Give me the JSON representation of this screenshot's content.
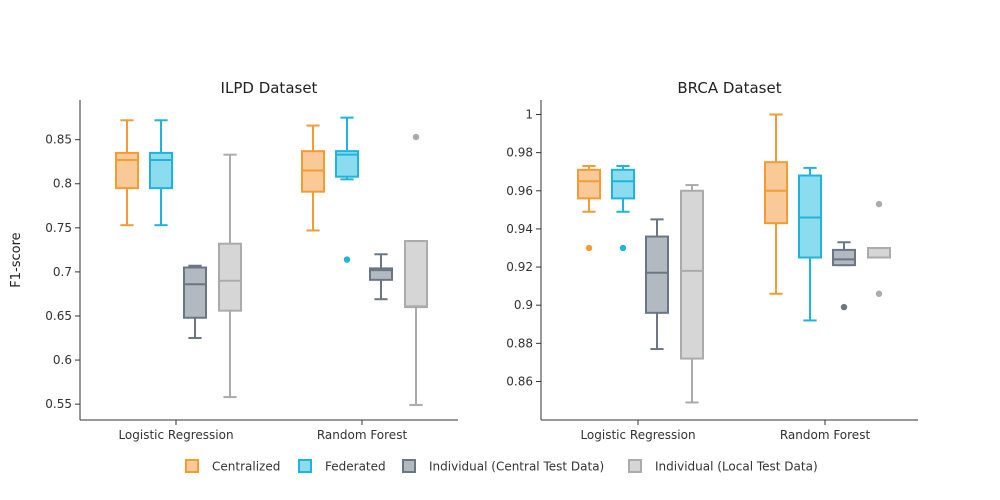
{
  "y_axis_title": "F1-score",
  "legend": [
    {
      "name": "Centralized",
      "stroke": "#F39C36",
      "fill": "#F9C997"
    },
    {
      "name": "Federated",
      "stroke": "#1EB4DC",
      "fill": "#8CDCF0"
    },
    {
      "name": "Individual (Central Test Data)",
      "stroke": "#6B7685",
      "fill": "#B3B9C0"
    },
    {
      "name": "Individual (Local Test Data)",
      "stroke": "#ABABAB",
      "fill": "#D6D6D6"
    }
  ],
  "chart_data": [
    {
      "type": "box",
      "title": "ILPD Dataset",
      "ylabel": "F1-score",
      "categories": [
        "Logistic Regression",
        "Random Forest"
      ],
      "ylim": [
        0.532,
        0.895
      ],
      "yticks": [
        0.55,
        0.6,
        0.65,
        0.7,
        0.75,
        0.8,
        0.85
      ],
      "ytick_labels": [
        "0.55",
        "0.6",
        "0.65",
        "0.7",
        "0.75",
        "0.8",
        "0.85"
      ],
      "series": [
        {
          "name": "Centralized",
          "boxes": [
            {
              "min": 0.753,
              "q1": 0.795,
              "median": 0.827,
              "q3": 0.835,
              "max": 0.872,
              "outliers": []
            },
            {
              "min": 0.747,
              "q1": 0.791,
              "median": 0.815,
              "q3": 0.837,
              "max": 0.866,
              "outliers": []
            }
          ]
        },
        {
          "name": "Federated",
          "boxes": [
            {
              "min": 0.753,
              "q1": 0.795,
              "median": 0.827,
              "q3": 0.835,
              "max": 0.872,
              "outliers": []
            },
            {
              "min": 0.805,
              "q1": 0.808,
              "median": 0.833,
              "q3": 0.837,
              "max": 0.875,
              "outliers": [
                0.714
              ]
            }
          ]
        },
        {
          "name": "Individual (Central Test Data)",
          "boxes": [
            {
              "min": 0.625,
              "q1": 0.648,
              "median": 0.686,
              "q3": 0.705,
              "max": 0.707,
              "outliers": []
            },
            {
              "min": 0.669,
              "q1": 0.691,
              "median": 0.702,
              "q3": 0.704,
              "max": 0.72,
              "outliers": []
            }
          ]
        },
        {
          "name": "Individual (Local Test Data)",
          "boxes": [
            {
              "min": 0.558,
              "q1": 0.656,
              "median": 0.69,
              "q3": 0.732,
              "max": 0.833,
              "outliers": []
            },
            {
              "min": 0.549,
              "q1": 0.66,
              "median": 0.661,
              "q3": 0.735,
              "max": 0.735,
              "outliers": [
                0.853
              ]
            }
          ]
        }
      ]
    },
    {
      "type": "box",
      "title": "BRCA Dataset",
      "categories": [
        "Logistic Regression",
        "Random Forest"
      ],
      "ylim": [
        0.8398,
        1.0076
      ],
      "yticks": [
        0.86,
        0.88,
        0.9,
        0.92,
        0.94,
        0.96,
        0.98,
        1
      ],
      "ytick_labels": [
        "0.86",
        "0.88",
        "0.9",
        "0.92",
        "0.94",
        "0.96",
        "0.98",
        "1"
      ],
      "series": [
        {
          "name": "Centralized",
          "boxes": [
            {
              "min": 0.949,
              "q1": 0.956,
              "median": 0.965,
              "q3": 0.971,
              "max": 0.973,
              "outliers": [
                0.93
              ]
            },
            {
              "min": 0.906,
              "q1": 0.943,
              "median": 0.96,
              "q3": 0.975,
              "max": 1.0,
              "outliers": []
            }
          ]
        },
        {
          "name": "Federated",
          "boxes": [
            {
              "min": 0.949,
              "q1": 0.956,
              "median": 0.965,
              "q3": 0.971,
              "max": 0.973,
              "outliers": [
                0.93
              ]
            },
            {
              "min": 0.892,
              "q1": 0.925,
              "median": 0.946,
              "q3": 0.968,
              "max": 0.972,
              "outliers": []
            }
          ]
        },
        {
          "name": "Individual (Central Test Data)",
          "boxes": [
            {
              "min": 0.877,
              "q1": 0.896,
              "median": 0.917,
              "q3": 0.936,
              "max": 0.945,
              "outliers": []
            },
            {
              "min": 0.921,
              "q1": 0.921,
              "median": 0.924,
              "q3": 0.929,
              "max": 0.933,
              "outliers": [
                0.899
              ]
            }
          ]
        },
        {
          "name": "Individual (Local Test Data)",
          "boxes": [
            {
              "min": 0.849,
              "q1": 0.872,
              "median": 0.918,
              "q3": 0.96,
              "max": 0.963,
              "outliers": []
            },
            {
              "min": 0.925,
              "q1": 0.925,
              "median": 0.925,
              "q3": 0.93,
              "max": 0.93,
              "outliers": [
                0.906,
                0.953
              ]
            }
          ]
        }
      ]
    }
  ]
}
